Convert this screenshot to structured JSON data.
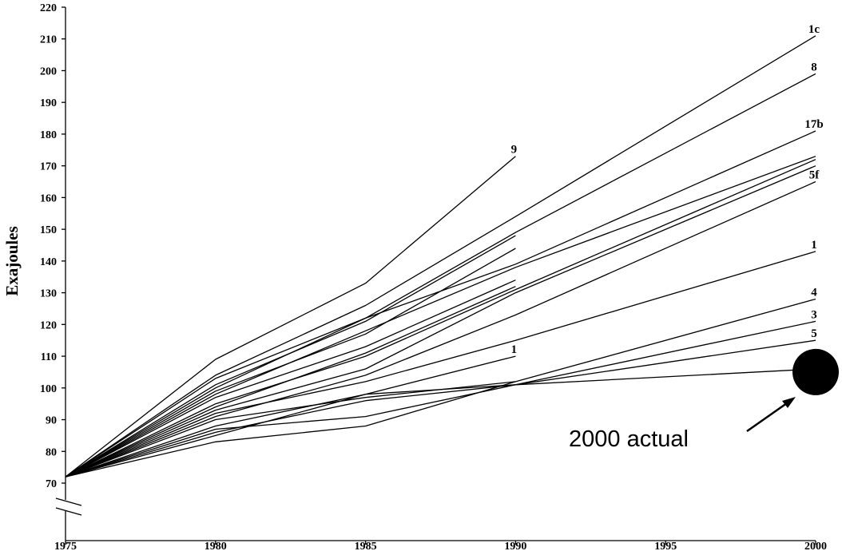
{
  "chart_data": {
    "type": "line",
    "title": "",
    "xlabel": "",
    "ylabel": "Exajoules",
    "xlim": [
      1975,
      2000
    ],
    "ylim": [
      70,
      220
    ],
    "xticks": [
      1975,
      1980,
      1985,
      1990,
      1995,
      2000
    ],
    "yticks": [
      70,
      80,
      90,
      100,
      110,
      120,
      130,
      140,
      150,
      160,
      170,
      180,
      190,
      200,
      210,
      220
    ],
    "grid": false,
    "axis_break": true,
    "series": [
      {
        "name": "9",
        "x": [
          1975,
          1980,
          1985,
          1990
        ],
        "y": [
          72,
          109,
          133,
          173
        ]
      },
      {
        "name": "1c",
        "x": [
          1975,
          1980,
          1985,
          1990,
          2000
        ],
        "y": [
          72,
          104,
          126,
          154,
          211
        ]
      },
      {
        "name": "8",
        "x": [
          1975,
          1980,
          1985,
          1990,
          2000
        ],
        "y": [
          72,
          103,
          122,
          149,
          199
        ]
      },
      {
        "name": "17b",
        "x": [
          1975,
          1980,
          1985,
          1990,
          2000
        ],
        "y": [
          72,
          100,
          122,
          139,
          181
        ]
      },
      {
        "name": "",
        "x": [
          1975,
          1980,
          1985,
          1990,
          2000
        ],
        "y": [
          72,
          98,
          118,
          138,
          173
        ]
      },
      {
        "name": "",
        "x": [
          1975,
          1980,
          1985,
          1990,
          2000
        ],
        "y": [
          72,
          95,
          110,
          131,
          172
        ]
      },
      {
        "name": "",
        "x": [
          1975,
          1980,
          1985,
          1990,
          2000
        ],
        "y": [
          72,
          93,
          106,
          130,
          170
        ]
      },
      {
        "name": "5f",
        "x": [
          1975,
          1980,
          1985,
          1990,
          2000
        ],
        "y": [
          72,
          91,
          104,
          123,
          165
        ]
      },
      {
        "name": "",
        "x": [
          1975,
          1980,
          1985,
          1990
        ],
        "y": [
          72,
          101,
          121,
          148
        ]
      },
      {
        "name": "",
        "x": [
          1975,
          1980,
          1985,
          1990
        ],
        "y": [
          72,
          99,
          117,
          144
        ]
      },
      {
        "name": "",
        "x": [
          1975,
          1980,
          1985,
          1990
        ],
        "y": [
          72,
          97,
          113,
          134
        ]
      },
      {
        "name": "",
        "x": [
          1975,
          1980,
          1985,
          1990
        ],
        "y": [
          72,
          94,
          111,
          132
        ]
      },
      {
        "name": "1",
        "x": [
          1975,
          1980,
          1985,
          1990,
          2000
        ],
        "y": [
          72,
          92,
          102,
          115,
          143
        ]
      },
      {
        "name": "4",
        "x": [
          1975,
          1980,
          1985,
          1990,
          2000
        ],
        "y": [
          72,
          90,
          97,
          102,
          128
        ]
      },
      {
        "name": "3",
        "x": [
          1975,
          1980,
          1985,
          1990,
          2000
        ],
        "y": [
          72,
          87,
          91,
          101,
          121
        ]
      },
      {
        "name": "5",
        "x": [
          1975,
          1980,
          1985,
          1990,
          2000
        ],
        "y": [
          72,
          85,
          98,
          101,
          115
        ]
      },
      {
        "name": "",
        "x": [
          1975,
          1980,
          1985,
          1990
        ],
        "y": [
          72,
          83,
          88,
          102
        ]
      },
      {
        "name": "1",
        "x": [
          1975,
          1980,
          1985,
          1990
        ],
        "y": [
          72,
          88,
          98,
          110
        ]
      },
      {
        "name": "",
        "x": [
          1975,
          1980,
          1985,
          1990,
          2000
        ],
        "y": [
          72,
          86,
          96,
          101,
          106
        ]
      }
    ],
    "actual_point": {
      "x": 2000,
      "y": 105
    },
    "annotation": "2000 actual"
  }
}
